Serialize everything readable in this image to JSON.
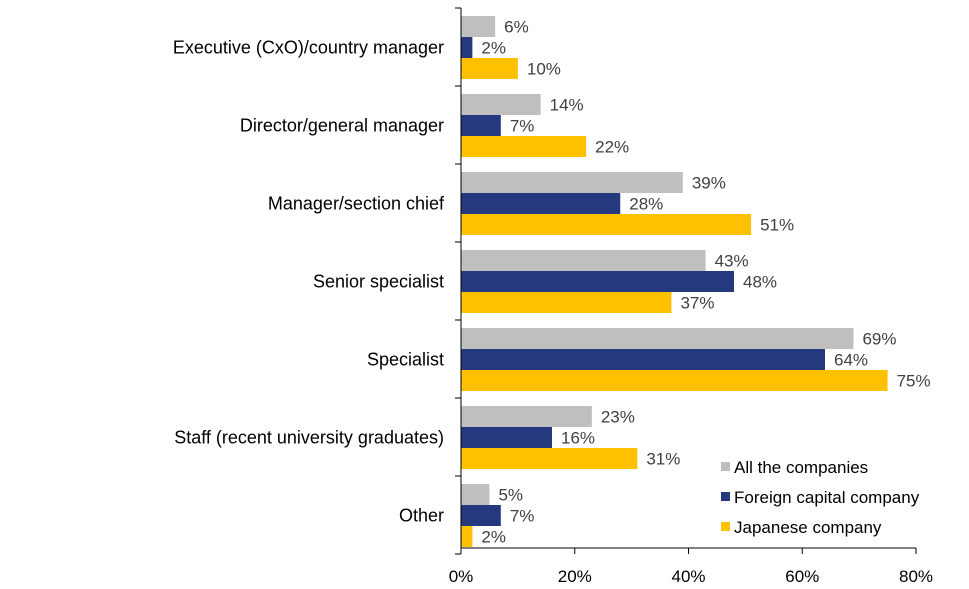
{
  "chart_data": {
    "type": "bar",
    "orientation": "horizontal",
    "categories": [
      "Executive (CxO)/country manager",
      "Director/general manager",
      "Manager/section chief",
      "Senior specialist",
      "Specialist",
      "Staff (recent university graduates)",
      "Other"
    ],
    "series": [
      {
        "name": "All the companies",
        "color": "#bfbfbf",
        "values": [
          6,
          14,
          39,
          43,
          69,
          23,
          5
        ]
      },
      {
        "name": "Foreign capital company",
        "color": "#253a7e",
        "values": [
          2,
          7,
          28,
          48,
          64,
          16,
          7
        ]
      },
      {
        "name": "Japanese company",
        "color": "#ffc000",
        "values": [
          10,
          22,
          51,
          37,
          75,
          31,
          2
        ]
      }
    ],
    "value_suffix": "%",
    "xlim": [
      0,
      80
    ],
    "xticks": [
      "0%",
      "20%",
      "40%",
      "60%",
      "80%"
    ],
    "grid": false,
    "legend_position": "bottom-right"
  }
}
